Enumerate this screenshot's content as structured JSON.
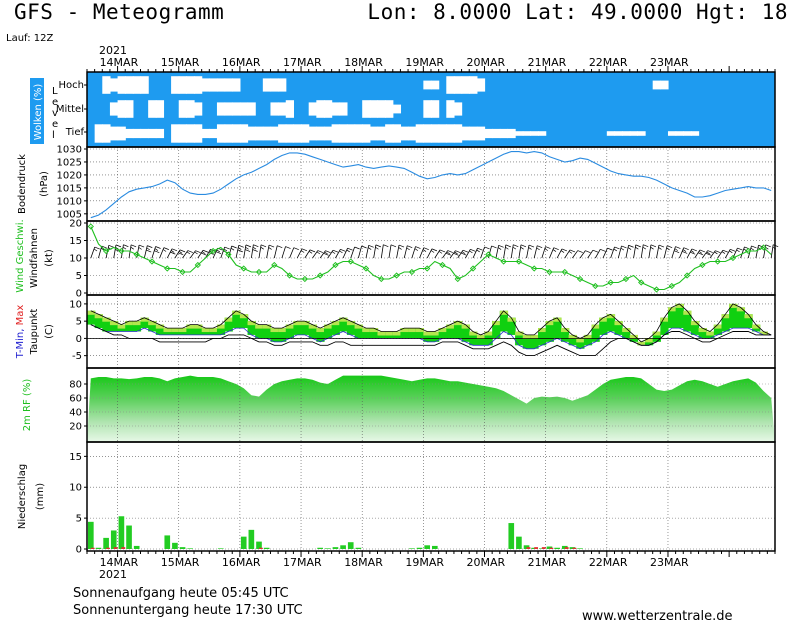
{
  "header": {
    "title": "GFS - Meteogramm",
    "location": "Lon: 8.0000  Lat: 49.0000  Hgt: 18",
    "run": "Lauf: 12Z"
  },
  "footer": {
    "sunrise": "Sonnenaufgang heute 05:45 UTC",
    "sunset": "Sonnenuntergang heute 17:30 UTC",
    "website": "www.wetterzentrale.de"
  },
  "colors": {
    "cloud_blue": "#1e9bf0",
    "pressure_line": "#2a8be0",
    "wind_green": "#1fbf1f",
    "temp_green": "#10d010",
    "temp_yellow": "#b4e64e",
    "rh_dark": "#18c818",
    "rh_light": "#e8f8e8",
    "precip_green": "#22cc22",
    "precip_red": "#e03030"
  },
  "chart_data": [
    {
      "type": "heatmap",
      "title": "Wolken (%)",
      "ylabel": "Level",
      "rows": [
        "Hoch",
        "Mittel",
        "Tief"
      ],
      "note": "white = cloud cover, blue = clear sky; 3-hourly steps",
      "cover_hoch": [
        0,
        0,
        80,
        60,
        80,
        80,
        80,
        80,
        0,
        0,
        0,
        80,
        80,
        80,
        80,
        60,
        60,
        60,
        60,
        60,
        0,
        0,
        0,
        60,
        60,
        60,
        0,
        0,
        0,
        0,
        0,
        0,
        0,
        0,
        0,
        0,
        0,
        0,
        0,
        0,
        0,
        0,
        0,
        0,
        40,
        40,
        0,
        80,
        80,
        80,
        80,
        60,
        0,
        0,
        0,
        0,
        0,
        0,
        0,
        0,
        0,
        0,
        0,
        0,
        0,
        0,
        0,
        0,
        0,
        0,
        0,
        0,
        0,
        0,
        40,
        40,
        0,
        0,
        0,
        0,
        0,
        0,
        0,
        0,
        0,
        0,
        0,
        0,
        0,
        0
      ],
      "cover_mittel": [
        0,
        0,
        0,
        60,
        80,
        80,
        0,
        0,
        80,
        80,
        0,
        0,
        80,
        80,
        60,
        0,
        0,
        60,
        60,
        60,
        60,
        60,
        0,
        0,
        60,
        60,
        80,
        0,
        0,
        60,
        80,
        80,
        60,
        60,
        0,
        0,
        80,
        80,
        80,
        80,
        40,
        0,
        0,
        0,
        80,
        80,
        0,
        80,
        60,
        0,
        0,
        0,
        0,
        0,
        0,
        0,
        0,
        0,
        0,
        0,
        0,
        0,
        0,
        0,
        0,
        0,
        0,
        0,
        0,
        0,
        0,
        0,
        0,
        0,
        0,
        0,
        0,
        0,
        0,
        0,
        0,
        0,
        0,
        0,
        0,
        0,
        0,
        0,
        0,
        0
      ],
      "cover_tief": [
        0,
        80,
        80,
        60,
        60,
        40,
        40,
        40,
        40,
        40,
        0,
        80,
        80,
        80,
        80,
        40,
        40,
        80,
        80,
        80,
        80,
        60,
        60,
        60,
        60,
        80,
        80,
        80,
        80,
        60,
        60,
        60,
        80,
        80,
        80,
        80,
        80,
        60,
        60,
        80,
        80,
        60,
        60,
        80,
        80,
        80,
        80,
        80,
        80,
        60,
        60,
        60,
        40,
        40,
        40,
        40,
        20,
        20,
        20,
        20,
        0,
        0,
        0,
        0,
        0,
        0,
        0,
        0,
        20,
        20,
        20,
        20,
        20,
        0,
        0,
        0,
        20,
        20,
        20,
        20,
        0,
        0,
        0,
        0,
        0,
        0,
        0,
        0,
        0,
        0
      ]
    },
    {
      "type": "line",
      "title": "Bodendruck",
      "ylabel": "(hPa)",
      "ylim": [
        1003,
        1030
      ],
      "yticks": [
        1005,
        1010,
        1015,
        1020,
        1025,
        1030
      ],
      "values": [
        1003.5,
        1004.5,
        1006.5,
        1009,
        1011.5,
        1013.5,
        1014.5,
        1015,
        1015.5,
        1016.5,
        1018,
        1017,
        1014.5,
        1013,
        1012.5,
        1012.5,
        1013,
        1014.5,
        1016.5,
        1018.5,
        1020,
        1021,
        1022.5,
        1024,
        1026,
        1027.5,
        1028.5,
        1028.5,
        1028,
        1027,
        1026,
        1025,
        1024,
        1023,
        1023.5,
        1024,
        1023,
        1022.5,
        1023,
        1023.5,
        1023,
        1022.5,
        1021,
        1019.5,
        1018.5,
        1019,
        1020,
        1020.5,
        1020,
        1020.5,
        1022,
        1023.5,
        1025,
        1026.5,
        1028,
        1029,
        1029,
        1028.5,
        1029,
        1028.5,
        1027,
        1026,
        1025,
        1025.5,
        1026.5,
        1026,
        1024.5,
        1023,
        1021.5,
        1020.5,
        1020,
        1019.5,
        1019.5,
        1019,
        1018,
        1016.5,
        1015,
        1014,
        1013,
        1011.5,
        1011.5,
        1012,
        1013,
        1014,
        1014.5,
        1015,
        1015.5,
        1015,
        1015,
        1014
      ]
    },
    {
      "type": "line",
      "title": "Wind Geschwi.",
      "ylabel": "(kt)",
      "extra_label": "Windfahnen",
      "ylim": [
        0,
        20
      ],
      "yticks": [
        0,
        5,
        10,
        15,
        20
      ],
      "values": [
        19,
        14,
        12,
        13,
        12,
        12,
        11,
        10,
        9,
        8,
        7,
        7,
        6,
        6,
        8,
        10,
        12,
        13,
        11,
        8,
        7,
        6,
        6,
        6,
        8,
        7,
        5,
        4,
        4,
        4,
        5,
        6,
        8,
        9,
        9,
        8,
        7,
        5,
        4,
        4,
        5,
        6,
        6,
        7,
        7,
        9,
        8,
        7,
        4,
        5,
        7,
        9,
        11,
        10,
        9,
        9,
        9,
        8,
        7,
        7,
        6,
        6,
        6,
        5,
        4,
        3,
        2,
        2,
        3,
        3,
        4,
        5,
        3,
        2,
        1,
        1,
        2,
        3,
        5,
        7,
        8,
        9,
        9,
        9,
        10,
        11,
        12,
        12,
        13,
        11
      ],
      "barbs": [
        10,
        10,
        10,
        15,
        10,
        10,
        10,
        15,
        15,
        10,
        15,
        15,
        10,
        10,
        15,
        15,
        15,
        15,
        10,
        15,
        15,
        15,
        10,
        10,
        5,
        5,
        5,
        10,
        10,
        10,
        15,
        10,
        10,
        10,
        5,
        5,
        10,
        10,
        5,
        5,
        10,
        10,
        10,
        10,
        10,
        10,
        15,
        15,
        15,
        10,
        10,
        5,
        5,
        10,
        10,
        10,
        10,
        10,
        10,
        10,
        10,
        10,
        10,
        5,
        5,
        5,
        5,
        5,
        10,
        10,
        10,
        10,
        10,
        10,
        10,
        10,
        15,
        15,
        15,
        15,
        15,
        10,
        10,
        10,
        10,
        10,
        10,
        10,
        10,
        10
      ]
    },
    {
      "type": "area",
      "title": "T-Min, Max",
      "ylabel": "(C)",
      "extra_label": "Taupunkt",
      "ylim": [
        -8,
        12
      ],
      "yticks": [
        -5,
        0,
        5,
        10
      ],
      "series": [
        {
          "name": "T-Max",
          "values": [
            8,
            7,
            6,
            5,
            4,
            5,
            5,
            6,
            5,
            4,
            3,
            3,
            3,
            4,
            4,
            3,
            3,
            4,
            6,
            8,
            7,
            5,
            4,
            4,
            3,
            3,
            4,
            5,
            5,
            4,
            3,
            4,
            5,
            6,
            5,
            4,
            3,
            3,
            2,
            2,
            2,
            3,
            3,
            3,
            2,
            2,
            3,
            4,
            5,
            4,
            2,
            1,
            2,
            5,
            8,
            6,
            2,
            1,
            1,
            3,
            5,
            6,
            3,
            1,
            0,
            1,
            4,
            6,
            7,
            5,
            3,
            1,
            -1,
            0,
            2,
            6,
            9,
            10,
            8,
            5,
            3,
            2,
            4,
            7,
            10,
            9,
            7,
            4,
            2,
            1
          ]
        },
        {
          "name": "T-Min",
          "values": [
            4,
            3,
            2,
            2,
            2,
            2,
            2,
            3,
            2,
            1,
            1,
            1,
            1,
            1,
            1,
            1,
            1,
            1,
            2,
            3,
            3,
            1,
            0,
            0,
            -1,
            -1,
            0,
            1,
            1,
            0,
            -1,
            0,
            1,
            2,
            1,
            0,
            0,
            0,
            0,
            0,
            0,
            0,
            0,
            0,
            -1,
            -1,
            0,
            0,
            0,
            -1,
            -2,
            -2,
            -2,
            0,
            2,
            1,
            -2,
            -3,
            -3,
            -2,
            -1,
            0,
            -1,
            -2,
            -3,
            -2,
            -1,
            1,
            2,
            1,
            0,
            -1,
            -2,
            -2,
            -1,
            1,
            3,
            3,
            2,
            1,
            0,
            0,
            1,
            2,
            3,
            3,
            3,
            2,
            1,
            1
          ]
        },
        {
          "name": "Taupunkt",
          "values": [
            4,
            3,
            2,
            1,
            1,
            0,
            0,
            0,
            0,
            -1,
            -1,
            -1,
            -1,
            -1,
            -1,
            -1,
            0,
            0,
            1,
            1,
            1,
            0,
            -1,
            -1,
            -2,
            -2,
            -1,
            -1,
            -1,
            -1,
            -2,
            -2,
            -1,
            -1,
            -2,
            -2,
            -2,
            -2,
            -2,
            -2,
            -2,
            -2,
            -2,
            -2,
            -2,
            -2,
            -1,
            -1,
            -1,
            -2,
            -3,
            -3,
            -3,
            -2,
            -1,
            -2,
            -4,
            -5,
            -5,
            -4,
            -3,
            -2,
            -3,
            -4,
            -5,
            -5,
            -5,
            -3,
            -1,
            0,
            0,
            -1,
            -2,
            -2,
            -1,
            1,
            2,
            2,
            1,
            0,
            -1,
            -1,
            0,
            1,
            2,
            2,
            2,
            1,
            1,
            1
          ]
        }
      ]
    },
    {
      "type": "area",
      "title": "2m RF (%)",
      "ylim": [
        0,
        100
      ],
      "yticks": [
        20,
        40,
        60,
        80
      ],
      "values": [
        88,
        90,
        90,
        88,
        88,
        87,
        88,
        90,
        90,
        88,
        84,
        88,
        90,
        92,
        90,
        90,
        90,
        88,
        84,
        80,
        74,
        64,
        62,
        72,
        80,
        84,
        86,
        88,
        88,
        86,
        82,
        80,
        86,
        92,
        92,
        92,
        92,
        92,
        92,
        90,
        88,
        86,
        84,
        86,
        88,
        88,
        86,
        84,
        84,
        82,
        80,
        78,
        76,
        74,
        70,
        64,
        58,
        52,
        60,
        62,
        61,
        62,
        60,
        56,
        60,
        64,
        72,
        80,
        86,
        88,
        90,
        90,
        88,
        80,
        72,
        70,
        72,
        78,
        84,
        86,
        84,
        80,
        76,
        80,
        84,
        86,
        88,
        82,
        70,
        60
      ]
    },
    {
      "type": "bar",
      "title": "Niederschlag",
      "ylabel": "(mm)",
      "ylim": [
        0,
        17
      ],
      "yticks": [
        0,
        5,
        10,
        15
      ],
      "series": [
        {
          "name": "Regen",
          "values": [
            4.4,
            0.2,
            1.8,
            3.0,
            5.3,
            3.8,
            0.5,
            0,
            0,
            0,
            2.2,
            1.0,
            0.3,
            0.1,
            0,
            0,
            0,
            0.1,
            0,
            0,
            2.0,
            3.1,
            1.2,
            0.2,
            0,
            0,
            0,
            0,
            0,
            0,
            0.2,
            0.1,
            0.3,
            0.6,
            1.1,
            0.2,
            0,
            0,
            0,
            0,
            0,
            0,
            0.1,
            0.2,
            0.6,
            0.5,
            0,
            0,
            0,
            0,
            0,
            0,
            0,
            0,
            0,
            4.2,
            2.0,
            0.6,
            0.2,
            0.1,
            0.4,
            0.2,
            0.5,
            0.3,
            0.1,
            0,
            0,
            0,
            0,
            0,
            0,
            0,
            0,
            0,
            0,
            0,
            0,
            0,
            0,
            0,
            0,
            0,
            0,
            0,
            0,
            0,
            0,
            0,
            0,
            0
          ]
        },
        {
          "name": "Schnee",
          "values": [
            0.2,
            0,
            0.2,
            0.3,
            0.3,
            0,
            0,
            0,
            0,
            0,
            0,
            0,
            0,
            0,
            0,
            0,
            0,
            0,
            0,
            0,
            0,
            0,
            0.2,
            0,
            0,
            0,
            0,
            0,
            0,
            0,
            0,
            0,
            0,
            0,
            0,
            0,
            0,
            0,
            0,
            0,
            0,
            0,
            0,
            0,
            0,
            0,
            0,
            0,
            0,
            0,
            0,
            0,
            0,
            0,
            0,
            0,
            0,
            0.3,
            0.3,
            0.3,
            0.2,
            0,
            0.3,
            0.2,
            0,
            0,
            0,
            0,
            0,
            0,
            0,
            0,
            0,
            0,
            0,
            0,
            0,
            0,
            0,
            0,
            0,
            0,
            0,
            0,
            0,
            0,
            0,
            0,
            0,
            0
          ]
        }
      ]
    }
  ],
  "time_axis": {
    "year": "2021",
    "day_labels": [
      "14MAR",
      "15MAR",
      "16MAR",
      "17MAR",
      "18MAR",
      "19MAR",
      "20MAR",
      "21MAR",
      "22MAR",
      "23MAR"
    ],
    "steps_per_day": 8,
    "start_step": 0,
    "first_day_offset_steps": 4
  }
}
